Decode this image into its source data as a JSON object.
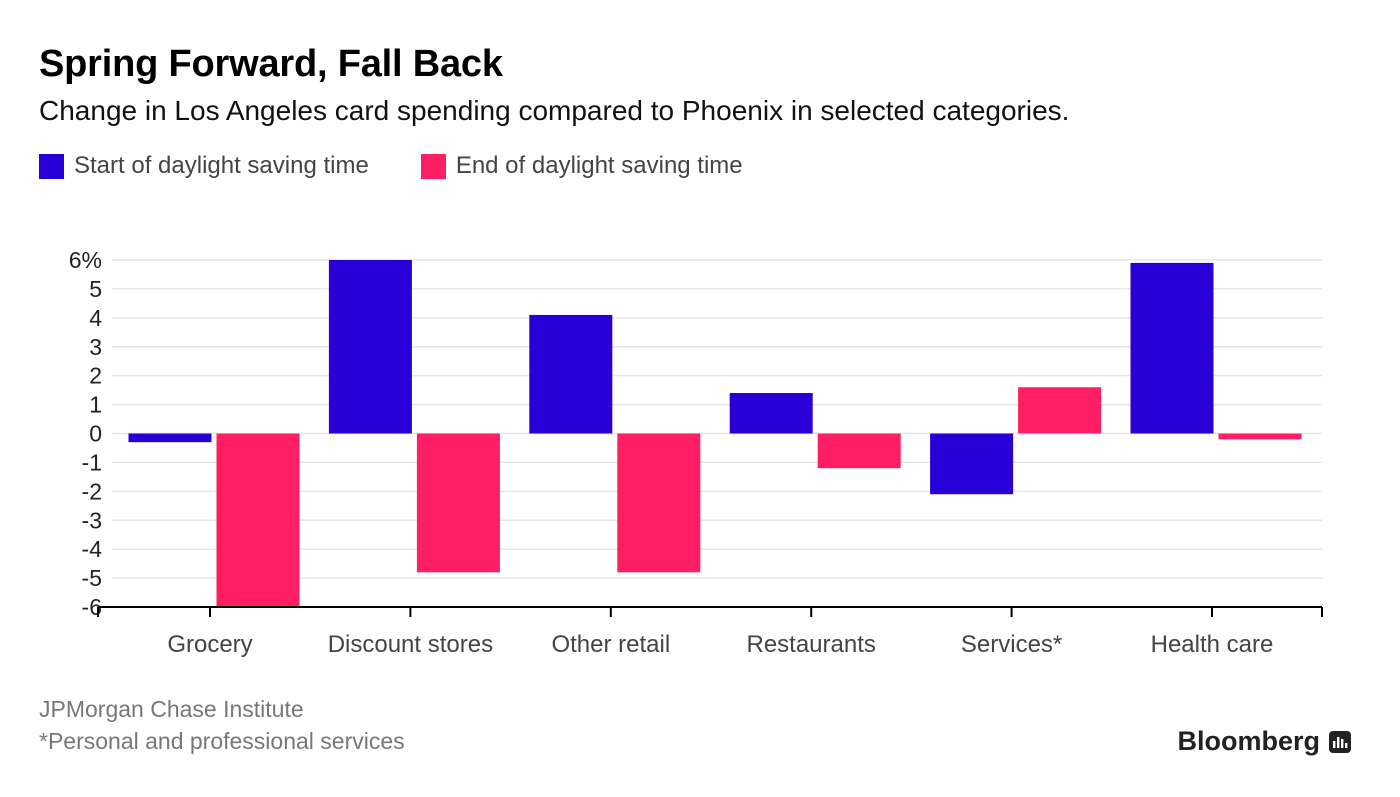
{
  "colors": {
    "start": "#2800d7",
    "end": "#ff1e63",
    "grid": "#e6e6e6",
    "axis": "#000000"
  },
  "header": {
    "title": "Spring Forward, Fall Back",
    "subtitle": "Change in Los Angeles card spending compared to Phoenix in selected categories."
  },
  "legend": {
    "start_label": "Start of daylight saving time",
    "end_label": "End of daylight saving time"
  },
  "footer": {
    "source": "JPMorgan Chase Institute",
    "footnote": "*Personal and professional services",
    "brand": "Bloomberg",
    "brand_icon": "bloomberg-chart-icon"
  },
  "chart_data": {
    "type": "bar",
    "categories": [
      "Grocery",
      "Discount stores",
      "Other retail",
      "Restaurants",
      "Services*",
      "Health care"
    ],
    "series": [
      {
        "name": "Start of daylight saving time",
        "values": [
          -0.3,
          6.0,
          4.1,
          1.4,
          -2.1,
          5.9
        ]
      },
      {
        "name": "End of daylight saving time",
        "values": [
          -6.0,
          -4.8,
          -4.8,
          -1.2,
          1.6,
          -0.2
        ]
      }
    ],
    "ylim": [
      -6,
      6
    ],
    "yticks": [
      "6%",
      "5",
      "4",
      "3",
      "2",
      "1",
      "0",
      "-1",
      "-2",
      "-3",
      "-4",
      "-5",
      "-6"
    ],
    "grid": true,
    "legend": "top-left"
  }
}
